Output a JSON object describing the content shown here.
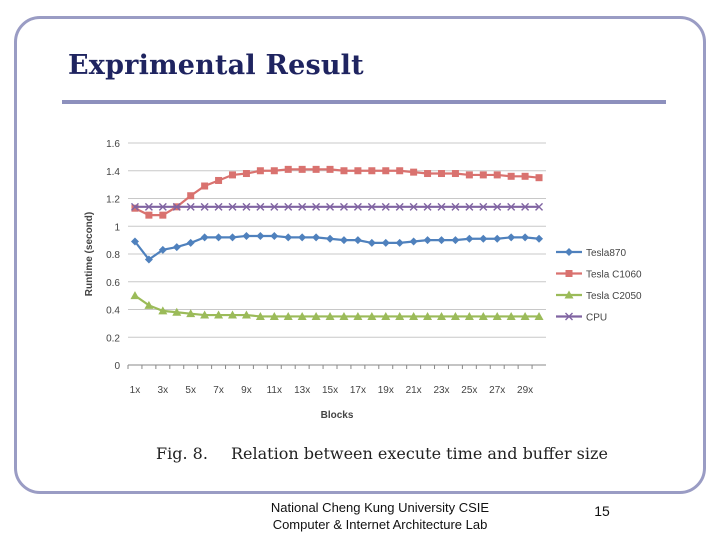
{
  "slide": {
    "title": "Exprimental Result",
    "caption_fig": "Fig. 8.",
    "caption_text": "Relation between execute time and buffer size",
    "footer_line1": "National Cheng Kung University CSIE",
    "footer_line2": "Computer & Internet Architecture Lab",
    "page_number": "15",
    "colors": {
      "title": "#1f2460",
      "frame": "#9a9cc4",
      "rule": "#8d90bd"
    }
  },
  "chart_data": {
    "type": "line",
    "xlabel": "Blocks",
    "ylabel": "Runtime (second)",
    "ylim": [
      0,
      1.6
    ],
    "yticks": [
      "0",
      "0.2",
      "0.4",
      "0.6",
      "0.8",
      "1",
      "1.2",
      "1.4",
      "1.6"
    ],
    "x": [
      "1x",
      "2x",
      "3x",
      "4x",
      "5x",
      "6x",
      "7x",
      "8x",
      "9x",
      "10x",
      "11x",
      "12x",
      "13x",
      "14x",
      "15x",
      "16x",
      "17x",
      "18x",
      "19x",
      "20x",
      "21x",
      "22x",
      "23x",
      "24x",
      "25x",
      "26x",
      "27x",
      "28x",
      "29x",
      "30x"
    ],
    "xtick_labels": [
      "1x",
      "3x",
      "5x",
      "7x",
      "9x",
      "11x",
      "13x",
      "15x",
      "17x",
      "19x",
      "21x",
      "23x",
      "25x",
      "27x",
      "29x"
    ],
    "grid": true,
    "legend_position": "right",
    "series": [
      {
        "name": "Tesla870",
        "color": "#4f81bd",
        "marker": "diamond",
        "values": [
          0.89,
          0.76,
          0.83,
          0.85,
          0.88,
          0.92,
          0.92,
          0.92,
          0.93,
          0.93,
          0.93,
          0.92,
          0.92,
          0.92,
          0.91,
          0.9,
          0.9,
          0.88,
          0.88,
          0.88,
          0.89,
          0.9,
          0.9,
          0.9,
          0.91,
          0.91,
          0.91,
          0.92,
          0.92,
          0.91
        ]
      },
      {
        "name": "Tesla C1060",
        "color": "#d9726f",
        "marker": "square",
        "values": [
          1.13,
          1.08,
          1.08,
          1.14,
          1.22,
          1.29,
          1.33,
          1.37,
          1.38,
          1.4,
          1.4,
          1.41,
          1.41,
          1.41,
          1.41,
          1.4,
          1.4,
          1.4,
          1.4,
          1.4,
          1.39,
          1.38,
          1.38,
          1.38,
          1.37,
          1.37,
          1.37,
          1.36,
          1.36,
          1.35
        ]
      },
      {
        "name": "Tesla C2050",
        "color": "#9bbb59",
        "marker": "triangle",
        "values": [
          0.5,
          0.43,
          0.39,
          0.38,
          0.37,
          0.36,
          0.36,
          0.36,
          0.36,
          0.35,
          0.35,
          0.35,
          0.35,
          0.35,
          0.35,
          0.35,
          0.35,
          0.35,
          0.35,
          0.35,
          0.35,
          0.35,
          0.35,
          0.35,
          0.35,
          0.35,
          0.35,
          0.35,
          0.35,
          0.35
        ]
      },
      {
        "name": "CPU",
        "color": "#8064a2",
        "marker": "x",
        "values": [
          1.14,
          1.14,
          1.14,
          1.14,
          1.14,
          1.14,
          1.14,
          1.14,
          1.14,
          1.14,
          1.14,
          1.14,
          1.14,
          1.14,
          1.14,
          1.14,
          1.14,
          1.14,
          1.14,
          1.14,
          1.14,
          1.14,
          1.14,
          1.14,
          1.14,
          1.14,
          1.14,
          1.14,
          1.14,
          1.14
        ]
      }
    ]
  }
}
